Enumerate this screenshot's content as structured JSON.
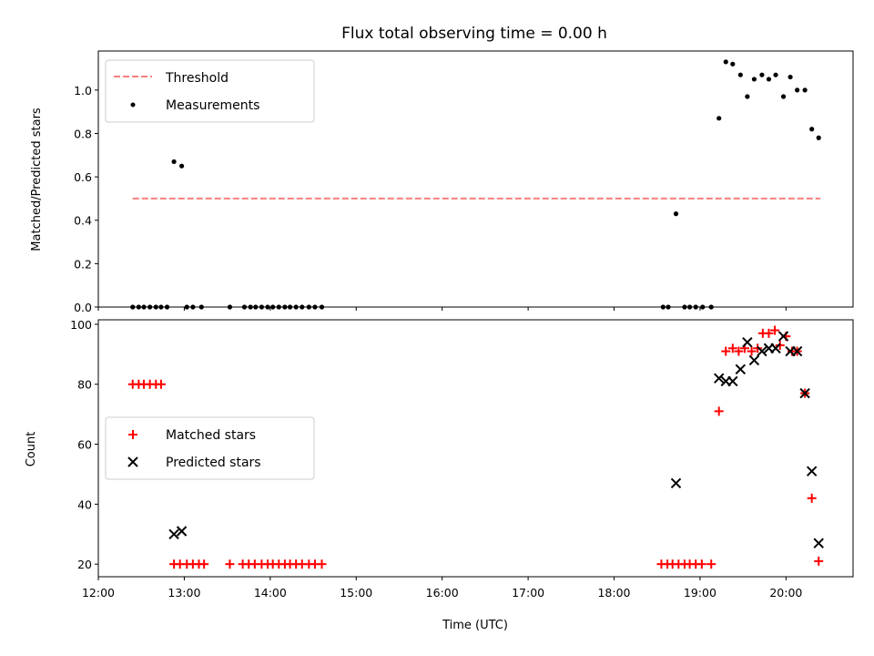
{
  "chart_data": [
    {
      "type": "scatter",
      "title": "Flux total observing time = 0.00 h",
      "xlabel": "",
      "ylabel": "Matched/Predicted stars",
      "xlim": [
        12.0,
        20.78
      ],
      "ylim": [
        0.0,
        1.18
      ],
      "yticks": [
        "0.0",
        "0.2",
        "0.4",
        "0.6",
        "0.8",
        "1.0"
      ],
      "legend_position": "upper-left",
      "grid": false,
      "series": [
        {
          "name": "Threshold",
          "kind": "dashed-line",
          "color": "#f87f7f",
          "x": [
            12.4,
            20.4
          ],
          "y": [
            0.5,
            0.5
          ]
        },
        {
          "name": "Measurements",
          "kind": "dots",
          "color": "#000000",
          "x": [
            12.4,
            12.47,
            12.53,
            12.6,
            12.67,
            12.73,
            12.8,
            12.88,
            12.97,
            13.03,
            13.1,
            13.2,
            13.53,
            13.7,
            13.77,
            13.83,
            13.9,
            13.97,
            14.03,
            14.1,
            14.17,
            14.23,
            14.3,
            14.37,
            14.45,
            14.52,
            14.6,
            18.57,
            18.63,
            18.72,
            18.82,
            18.88,
            18.95,
            19.03,
            19.13,
            19.22,
            19.3,
            19.38,
            19.47,
            19.55,
            19.63,
            19.72,
            19.8,
            19.88,
            19.97,
            20.05,
            20.13,
            20.22,
            20.3,
            20.38
          ],
          "y": [
            0.0,
            0.0,
            0.0,
            0.0,
            0.0,
            0.0,
            0.0,
            0.67,
            0.65,
            0.0,
            0.0,
            0.0,
            0.0,
            0.0,
            0.0,
            0.0,
            0.0,
            0.0,
            0.0,
            0.0,
            0.0,
            0.0,
            0.0,
            0.0,
            0.0,
            0.0,
            0.0,
            0.0,
            0.0,
            0.43,
            0.0,
            0.0,
            0.0,
            0.0,
            0.0,
            0.87,
            1.13,
            1.12,
            1.07,
            0.97,
            1.05,
            1.07,
            1.05,
            1.07,
            0.97,
            1.06,
            1.0,
            1.0,
            0.82,
            0.78
          ]
        }
      ]
    },
    {
      "type": "scatter",
      "title": "",
      "xlabel": "Time (UTC)",
      "ylabel": "Count",
      "xlim": [
        12.0,
        20.78
      ],
      "ylim": [
        15.8,
        101.5
      ],
      "xticks": [
        "12:00",
        "13:00",
        "14:00",
        "15:00",
        "16:00",
        "17:00",
        "18:00",
        "19:00",
        "20:00"
      ],
      "yticks": [
        "20",
        "40",
        "60",
        "80",
        "100"
      ],
      "legend_position": "center-left",
      "grid": false,
      "series": [
        {
          "name": "Matched stars",
          "kind": "plus",
          "color": "#ff0000",
          "x": [
            12.4,
            12.47,
            12.53,
            12.6,
            12.67,
            12.73,
            12.88,
            12.95,
            13.03,
            13.1,
            13.17,
            13.23,
            13.53,
            13.68,
            13.75,
            13.82,
            13.9,
            13.97,
            14.03,
            14.1,
            14.17,
            14.23,
            14.3,
            14.37,
            14.45,
            14.52,
            14.6,
            18.55,
            18.62,
            18.68,
            18.75,
            18.82,
            18.88,
            18.95,
            19.02,
            19.13,
            19.22,
            19.3,
            19.38,
            19.45,
            19.52,
            19.6,
            19.67,
            19.73,
            19.8,
            19.87,
            19.93,
            20.0,
            20.07,
            20.13,
            20.22,
            20.3,
            20.38
          ],
          "y": [
            80,
            80,
            80,
            80,
            80,
            80,
            20,
            20,
            20,
            20,
            20,
            20,
            20,
            20,
            20,
            20,
            20,
            20,
            20,
            20,
            20,
            20,
            20,
            20,
            20,
            20,
            20,
            20,
            20,
            20,
            20,
            20,
            20,
            20,
            20,
            20,
            71,
            91,
            92,
            91,
            92,
            91,
            92,
            97,
            97,
            98,
            93,
            96,
            91,
            91,
            77,
            42,
            21
          ]
        },
        {
          "name": "Predicted stars",
          "kind": "cross",
          "color": "#000000",
          "x": [
            12.88,
            12.97,
            18.72,
            19.22,
            19.3,
            19.38,
            19.47,
            19.55,
            19.63,
            19.72,
            19.8,
            19.88,
            19.97,
            20.05,
            20.13,
            20.22,
            20.3,
            20.38
          ],
          "y": [
            30,
            31,
            47,
            82,
            81,
            81,
            85,
            94,
            88,
            91,
            92,
            92,
            96,
            91,
            91,
            77,
            51,
            27
          ]
        }
      ]
    }
  ]
}
